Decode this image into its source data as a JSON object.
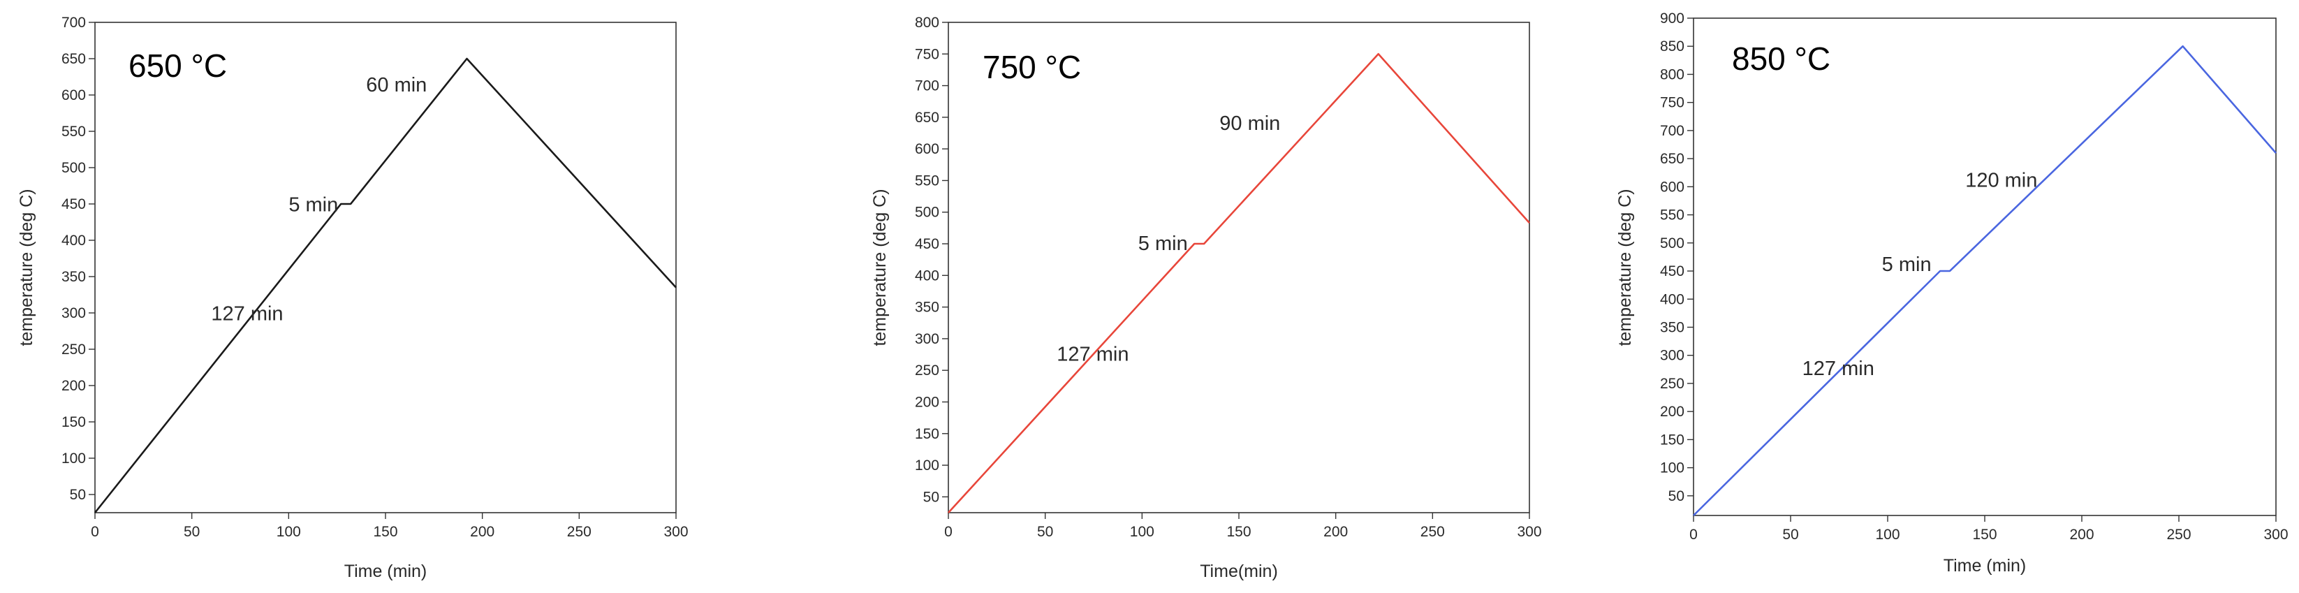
{
  "chart_data": [
    {
      "type": "line",
      "title": "650 °C",
      "xlabel": "Time (min)",
      "ylabel": "temperature (deg C)",
      "xlim": [
        0,
        300
      ],
      "ylim": [
        25,
        700
      ],
      "xticks": [
        0,
        50,
        100,
        150,
        200,
        250,
        300
      ],
      "yticks": [
        50,
        100,
        150,
        200,
        250,
        300,
        350,
        400,
        450,
        500,
        550,
        600,
        650,
        700
      ],
      "grid": false,
      "series": [
        {
          "color": "#1a1a1a",
          "points": [
            [
              0,
              25
            ],
            [
              127,
              450
            ],
            [
              132,
              450
            ],
            [
              192,
              650
            ],
            [
              300,
              335
            ]
          ]
        }
      ],
      "annotations": [
        {
          "text": "127 min",
          "x": 60,
          "y": 290
        },
        {
          "text": "5 min",
          "x": 100,
          "y": 440
        },
        {
          "text": "60 min",
          "x": 140,
          "y": 605
        }
      ]
    },
    {
      "type": "line",
      "title": "750 °C",
      "xlabel": "Time(min)",
      "ylabel": "temperature (deg C)",
      "xlim": [
        0,
        300
      ],
      "ylim": [
        25,
        800
      ],
      "xticks": [
        0,
        50,
        100,
        150,
        200,
        250,
        300
      ],
      "yticks": [
        50,
        100,
        150,
        200,
        250,
        300,
        350,
        400,
        450,
        500,
        550,
        600,
        650,
        700,
        750,
        800
      ],
      "grid": false,
      "series": [
        {
          "color": "#e8463a",
          "points": [
            [
              0,
              25
            ],
            [
              127,
              450
            ],
            [
              132,
              450
            ],
            [
              222,
              750
            ],
            [
              300,
              483
            ]
          ]
        }
      ],
      "annotations": [
        {
          "text": "127 min",
          "x": 56,
          "y": 265
        },
        {
          "text": "5 min",
          "x": 98,
          "y": 440
        },
        {
          "text": "90 min",
          "x": 140,
          "y": 630
        }
      ]
    },
    {
      "type": "line",
      "title": "850 °C",
      "xlabel": "Time (min)",
      "ylabel": "temperature (deg C)",
      "xlim": [
        0,
        300
      ],
      "ylim": [
        15,
        900
      ],
      "xticks": [
        0,
        50,
        100,
        150,
        200,
        250,
        300
      ],
      "yticks": [
        50,
        100,
        150,
        200,
        250,
        300,
        350,
        400,
        450,
        500,
        550,
        600,
        650,
        700,
        750,
        800,
        850,
        900
      ],
      "grid": false,
      "series": [
        {
          "color": "#4a66e0",
          "points": [
            [
              0,
              15
            ],
            [
              127,
              450
            ],
            [
              132,
              450
            ],
            [
              252,
              850
            ],
            [
              300,
              660
            ]
          ]
        }
      ],
      "annotations": [
        {
          "text": "127 min",
          "x": 56,
          "y": 265
        },
        {
          "text": "5 min",
          "x": 97,
          "y": 450
        },
        {
          "text": "120 min",
          "x": 140,
          "y": 600
        }
      ]
    }
  ]
}
